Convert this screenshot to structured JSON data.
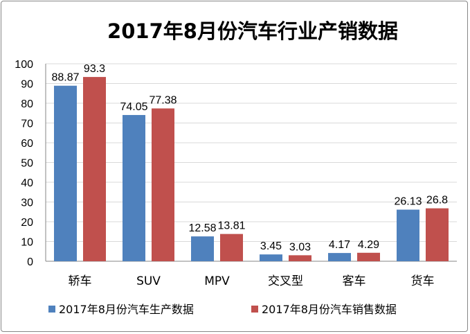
{
  "chart_data": {
    "type": "bar",
    "title": "2017年8月份汽车行业产销数据",
    "categories": [
      "轿车",
      "SUV",
      "MPV",
      "交叉型",
      "客车",
      "货车"
    ],
    "series": [
      {
        "name": "2017年8月份汽车生产数据",
        "color": "#4F81BD",
        "values": [
          88.87,
          74.05,
          12.58,
          3.45,
          4.17,
          26.13
        ],
        "labels": [
          "88.87",
          "74.05",
          "12.58",
          "3.45",
          "4.17",
          "26.13"
        ]
      },
      {
        "name": "2017年8月份汽车销售数据",
        "color": "#C0504D",
        "values": [
          93.3,
          77.38,
          13.81,
          3.03,
          4.29,
          26.8
        ],
        "labels": [
          "93.3",
          "77.38",
          "13.81",
          "3.03",
          "4.29",
          "26.8"
        ]
      }
    ],
    "ylim": [
      0,
      100
    ],
    "yticks": [
      "0",
      "10",
      "20",
      "30",
      "40",
      "50",
      "60",
      "70",
      "80",
      "90",
      "100"
    ],
    "xlabel": "",
    "ylabel": "",
    "grid": true,
    "legend": "bottom"
  }
}
